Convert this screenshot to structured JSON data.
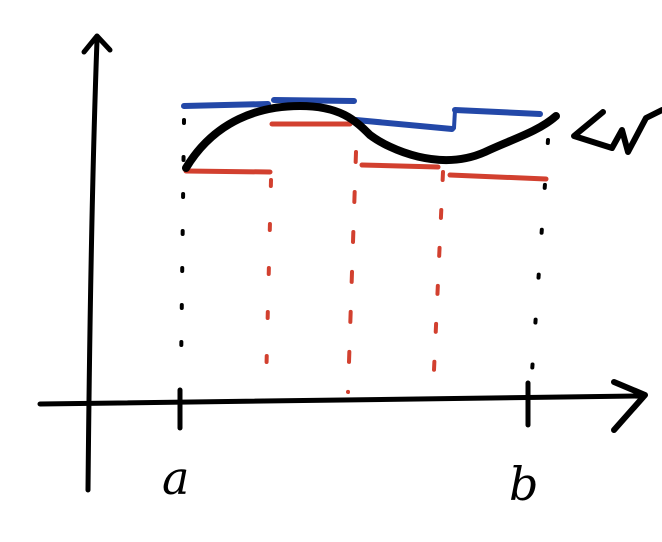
{
  "diagram": {
    "labels": {
      "a": "a",
      "b": "b"
    },
    "colors": {
      "ink": "#000000",
      "upper": "#2348a8",
      "lower": "#d2402f"
    }
  }
}
